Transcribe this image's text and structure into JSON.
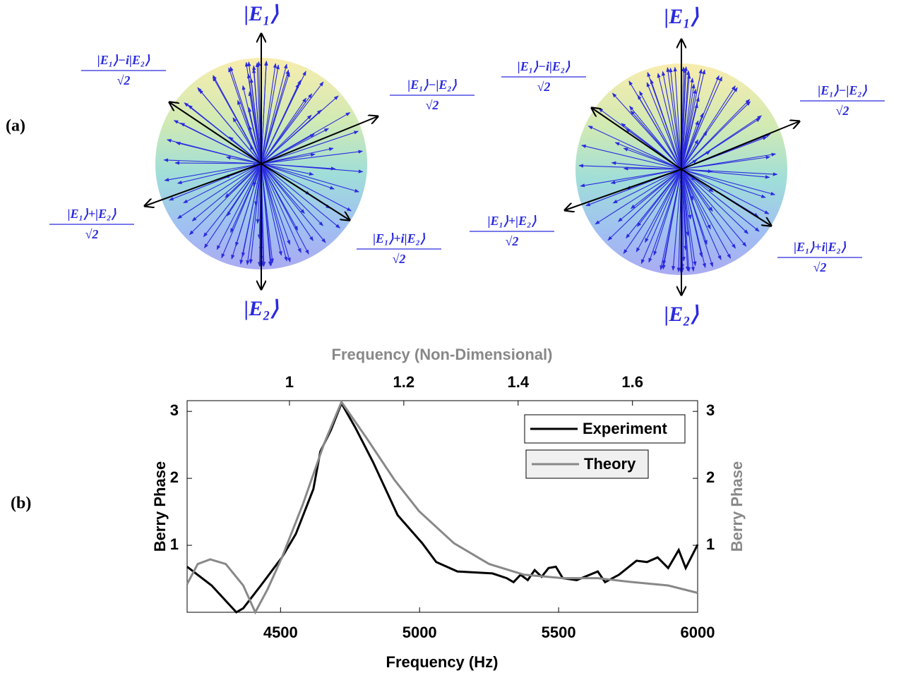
{
  "figure": {
    "panel_labels": [
      "(a)",
      "(b)"
    ],
    "spheres": [
      {
        "top": "|E₁⟩",
        "bottom": "|E₂⟩",
        "states": [
          {
            "numerator": "|E₁⟩−i|E₂⟩",
            "denominator": "√2"
          },
          {
            "numerator": "|E₁⟩−|E₂⟩",
            "denominator": "√2"
          },
          {
            "numerator": "|E₁⟩+|E₂⟩",
            "denominator": "√2"
          },
          {
            "numerator": "|E₁⟩+i|E₂⟩",
            "denominator": "√2"
          }
        ]
      },
      {
        "top": "|E₁⟩",
        "bottom": "|E₂⟩",
        "states": [
          {
            "numerator": "|E₁⟩−i|E₂⟩",
            "denominator": "√2"
          },
          {
            "numerator": "|E₁⟩−|E₂⟩",
            "denominator": "√2"
          },
          {
            "numerator": "|E₁⟩+|E₂⟩",
            "denominator": "√2"
          },
          {
            "numerator": "|E₁⟩+i|E₂⟩",
            "denominator": "√2"
          }
        ]
      }
    ]
  },
  "chart_data": {
    "type": "line",
    "xlabel": "Frequency (Hz)",
    "x2label": "Frequency (Non-Dimensional)",
    "ylabel": "Berry Phase",
    "y2label": "Berry Phase",
    "xlim": [
      4164,
      6000
    ],
    "xticks": [
      4500,
      5000,
      5500,
      6000
    ],
    "x2lim": [
      0.821,
      1.714
    ],
    "x2ticks": [
      1,
      1.2,
      1.4,
      1.6
    ],
    "ylim": [
      0,
      3.16
    ],
    "yticks": [
      1,
      2,
      3
    ],
    "y2lim": [
      0,
      3.16
    ],
    "y2ticks": [
      1,
      2,
      3
    ],
    "legend": "upper right",
    "grid": false,
    "series": [
      {
        "name": "Experiment",
        "color": "#000000",
        "x": [
          4164,
          4252,
          4341,
          4366,
          4429,
          4505,
          4555,
          4618,
          4643,
          4681,
          4719,
          4770,
          4833,
          4921,
          5010,
          5060,
          5136,
          5262,
          5313,
          5338,
          5363,
          5389,
          5414,
          5439,
          5464,
          5490,
          5515,
          5565,
          5641,
          5667,
          5717,
          5780,
          5818,
          5856,
          5894,
          5932,
          5957,
          6000
        ],
        "values": [
          0.68,
          0.4,
          0.0,
          0.06,
          0.4,
          0.82,
          1.17,
          1.84,
          2.4,
          2.72,
          3.12,
          2.75,
          2.24,
          1.45,
          1.03,
          0.75,
          0.61,
          0.58,
          0.51,
          0.45,
          0.56,
          0.48,
          0.63,
          0.53,
          0.66,
          0.68,
          0.51,
          0.48,
          0.61,
          0.45,
          0.56,
          0.77,
          0.75,
          0.82,
          0.66,
          0.93,
          0.66,
          1.01
        ]
      },
      {
        "name": "Theory",
        "color": "#888888",
        "x": [
          4164,
          4202,
          4247,
          4303,
          4366,
          4409,
          4454,
          4505,
          4580,
          4656,
          4719,
          4808,
          4909,
          4998,
          5124,
          5250,
          5376,
          5515,
          5641,
          5767,
          5894,
          6000
        ],
        "values": [
          0.42,
          0.72,
          0.79,
          0.72,
          0.4,
          0.0,
          0.35,
          0.82,
          1.61,
          2.51,
          3.14,
          2.61,
          1.98,
          1.51,
          1.03,
          0.72,
          0.56,
          0.51,
          0.51,
          0.45,
          0.4,
          0.29
        ]
      }
    ]
  }
}
